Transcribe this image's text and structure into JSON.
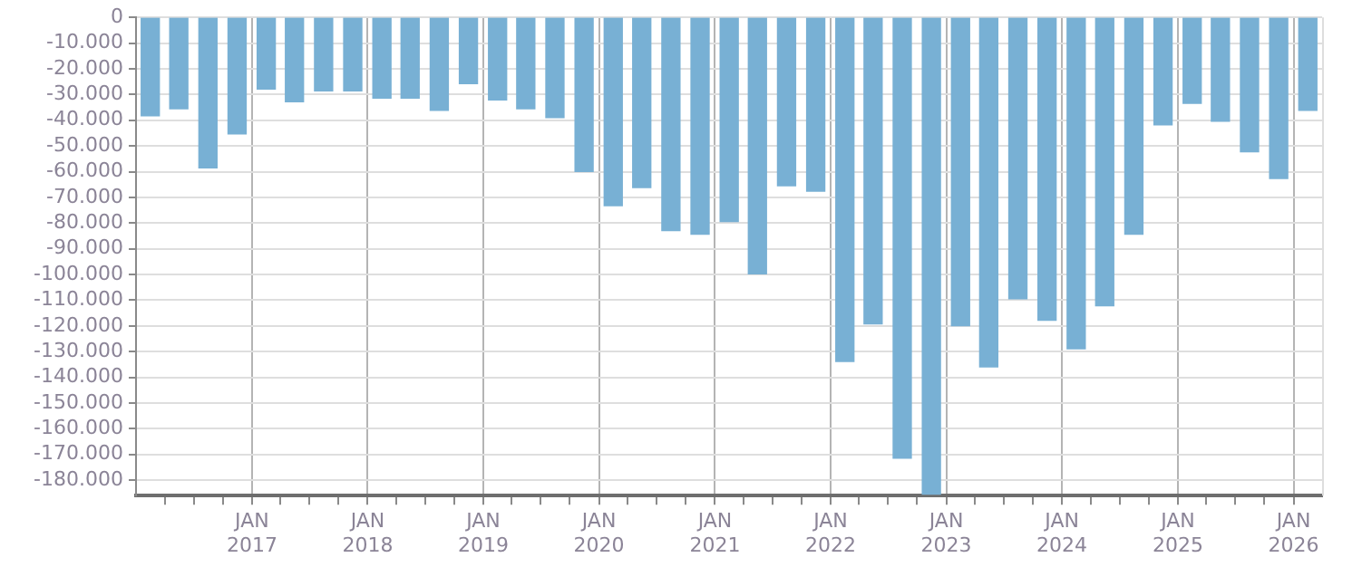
{
  "chart_data": {
    "type": "bar",
    "color": "#78b0d4",
    "x": [
      "2016-02-15",
      "2016-05-15",
      "2016-08-15",
      "2016-11-15",
      "2017-02-15",
      "2017-05-15",
      "2017-08-15",
      "2017-11-15",
      "2018-02-15",
      "2018-05-15",
      "2018-08-15",
      "2018-11-15",
      "2019-02-15",
      "2019-05-15",
      "2019-08-15",
      "2019-11-15",
      "2020-02-15",
      "2020-05-15",
      "2020-08-15",
      "2020-11-15",
      "2021-02-15",
      "2021-05-15",
      "2021-08-15",
      "2021-11-15",
      "2022-02-15",
      "2022-05-15",
      "2022-08-15",
      "2022-11-15",
      "2023-02-15",
      "2023-05-15",
      "2023-08-15",
      "2023-11-15",
      "2024-02-15",
      "2024-05-15",
      "2024-08-15",
      "2024-11-15",
      "2025-02-15",
      "2025-05-15",
      "2025-08-15",
      "2025-11-15",
      "2026-02-15"
    ],
    "values": [
      -38300,
      -35500,
      -58500,
      -45300,
      -27900,
      -32800,
      -28600,
      -28600,
      -31400,
      -31400,
      -36200,
      -25800,
      -32100,
      -35500,
      -39000,
      -59900,
      -73200,
      -66200,
      -82900,
      -84300,
      -79400,
      -99700,
      -65500,
      -67600,
      -133800,
      -119200,
      -171400,
      -185400,
      -119900,
      -135900,
      -109400,
      -117800,
      -128900,
      -112200,
      -84300,
      -41800,
      -33400,
      -40400,
      -52300,
      -62700,
      -36200
    ],
    "xlim": [
      "2016-01-01",
      "2026-04-01"
    ],
    "xticks": [
      {
        "value": "2016-04-01",
        "label": null
      },
      {
        "value": "2016-07-01",
        "label": null
      },
      {
        "value": "2016-10-01",
        "label": null
      },
      {
        "value": "2017-01-01",
        "label": "JAN 2017"
      },
      {
        "value": "2017-04-01",
        "label": null
      },
      {
        "value": "2017-07-01",
        "label": null
      },
      {
        "value": "2017-10-01",
        "label": null
      },
      {
        "value": "2018-01-01",
        "label": "JAN 2018"
      },
      {
        "value": "2018-04-01",
        "label": null
      },
      {
        "value": "2018-07-01",
        "label": null
      },
      {
        "value": "2018-10-01",
        "label": null
      },
      {
        "value": "2019-01-01",
        "label": "JAN 2019"
      },
      {
        "value": "2019-04-01",
        "label": null
      },
      {
        "value": "2019-07-01",
        "label": null
      },
      {
        "value": "2019-10-01",
        "label": null
      },
      {
        "value": "2020-01-01",
        "label": "JAN 2020"
      },
      {
        "value": "2020-04-01",
        "label": null
      },
      {
        "value": "2020-07-01",
        "label": null
      },
      {
        "value": "2020-10-01",
        "label": null
      },
      {
        "value": "2021-01-01",
        "label": "JAN 2021"
      },
      {
        "value": "2021-04-01",
        "label": null
      },
      {
        "value": "2021-07-01",
        "label": null
      },
      {
        "value": "2021-10-01",
        "label": null
      },
      {
        "value": "2022-01-01",
        "label": "JAN 2022"
      },
      {
        "value": "2022-04-01",
        "label": null
      },
      {
        "value": "2022-07-01",
        "label": null
      },
      {
        "value": "2022-10-01",
        "label": null
      },
      {
        "value": "2023-01-01",
        "label": "JAN 2023"
      },
      {
        "value": "2023-04-01",
        "label": null
      },
      {
        "value": "2023-07-01",
        "label": null
      },
      {
        "value": "2023-10-01",
        "label": null
      },
      {
        "value": "2024-01-01",
        "label": "JAN 2024"
      },
      {
        "value": "2024-04-01",
        "label": null
      },
      {
        "value": "2024-07-01",
        "label": null
      },
      {
        "value": "2024-10-01",
        "label": null
      },
      {
        "value": "2025-01-01",
        "label": "JAN 2025"
      },
      {
        "value": "2025-04-01",
        "label": null
      },
      {
        "value": "2025-07-01",
        "label": null
      },
      {
        "value": "2025-10-01",
        "label": null
      },
      {
        "value": "2026-01-01",
        "label": "JAN 2026"
      }
    ],
    "ylim": [
      -186000,
      0
    ],
    "yticks": [
      {
        "value": 0,
        "label": "0"
      },
      {
        "value": -10000,
        "label": "-10.000"
      },
      {
        "value": -20000,
        "label": "-20.000"
      },
      {
        "value": -30000,
        "label": "-30.000"
      },
      {
        "value": -40000,
        "label": "-40.000"
      },
      {
        "value": -50000,
        "label": "-50.000"
      },
      {
        "value": -60000,
        "label": "-60.000"
      },
      {
        "value": -70000,
        "label": "-70.000"
      },
      {
        "value": -80000,
        "label": "-80.000"
      },
      {
        "value": -90000,
        "label": "-90.000"
      },
      {
        "value": -100000,
        "label": "-100.000"
      },
      {
        "value": -110000,
        "label": "-110.000"
      },
      {
        "value": -120000,
        "label": "-120.000"
      },
      {
        "value": -130000,
        "label": "-130.000"
      },
      {
        "value": -140000,
        "label": "-140.000"
      },
      {
        "value": -150000,
        "label": "-150.000"
      },
      {
        "value": -160000,
        "label": "-160.000"
      },
      {
        "value": -170000,
        "label": "-170.000"
      },
      {
        "value": -180000,
        "label": "-180.000"
      }
    ],
    "grid": true
  }
}
